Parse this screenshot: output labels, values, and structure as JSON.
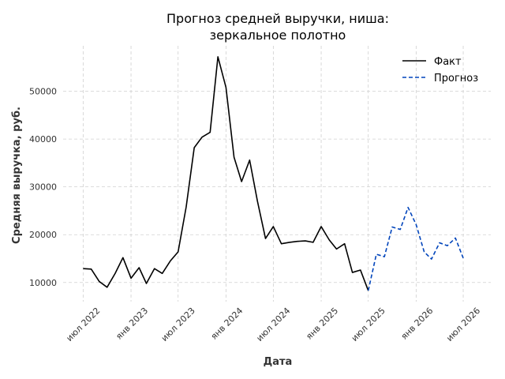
{
  "chart_data": {
    "type": "line",
    "title_lines": [
      "Прогноз средней выручки, ниша:",
      "зеркальное полотно"
    ],
    "xlabel": "Дата",
    "ylabel": "Средняя выручка, руб.",
    "x_ticks": [
      {
        "date": "2022-07-01",
        "label": "июл 2022"
      },
      {
        "date": "2023-01-01",
        "label": "янв 2023"
      },
      {
        "date": "2023-07-01",
        "label": "июл 2023"
      },
      {
        "date": "2024-01-01",
        "label": "янв 2024"
      },
      {
        "date": "2024-07-01",
        "label": "июл 2024"
      },
      {
        "date": "2025-01-01",
        "label": "янв 2025"
      },
      {
        "date": "2025-07-01",
        "label": "июл 2025"
      },
      {
        "date": "2026-01-01",
        "label": "янв 2026"
      },
      {
        "date": "2026-07-01",
        "label": "июл 2026"
      }
    ],
    "y_ticks": [
      {
        "value": 10000,
        "label": "10000"
      },
      {
        "value": 20000,
        "label": "20000"
      },
      {
        "value": 30000,
        "label": "30000"
      },
      {
        "value": 40000,
        "label": "40000"
      },
      {
        "value": 50000,
        "label": "50000"
      }
    ],
    "xlim": [
      "2022-04-15",
      "2026-10-15"
    ],
    "ylim": [
      6000,
      59500
    ],
    "grid": true,
    "legend_position": "top-right",
    "series": [
      {
        "name": "Факт",
        "color": "#000000",
        "style": "solid",
        "points": [
          [
            "2022-07-01",
            12900
          ],
          [
            "2022-08-01",
            12800
          ],
          [
            "2022-09-01",
            10200
          ],
          [
            "2022-10-01",
            9000
          ],
          [
            "2022-11-01",
            11900
          ],
          [
            "2022-12-01",
            15200
          ],
          [
            "2023-01-01",
            10900
          ],
          [
            "2023-02-01",
            13100
          ],
          [
            "2023-03-01",
            9800
          ],
          [
            "2023-04-01",
            12900
          ],
          [
            "2023-05-01",
            11900
          ],
          [
            "2023-06-01",
            14500
          ],
          [
            "2023-07-01",
            16400
          ],
          [
            "2023-08-01",
            25800
          ],
          [
            "2023-09-01",
            38200
          ],
          [
            "2023-10-01",
            40400
          ],
          [
            "2023-11-01",
            41400
          ],
          [
            "2023-12-01",
            57200
          ],
          [
            "2024-01-01",
            50800
          ],
          [
            "2024-02-01",
            36200
          ],
          [
            "2024-03-01",
            31100
          ],
          [
            "2024-04-01",
            35600
          ],
          [
            "2024-05-01",
            27000
          ],
          [
            "2024-06-01",
            19200
          ],
          [
            "2024-07-01",
            21700
          ],
          [
            "2024-08-01",
            18100
          ],
          [
            "2024-09-01",
            18400
          ],
          [
            "2024-10-01",
            18600
          ],
          [
            "2024-11-01",
            18700
          ],
          [
            "2024-12-01",
            18400
          ],
          [
            "2025-01-01",
            21700
          ],
          [
            "2025-02-01",
            18900
          ],
          [
            "2025-03-01",
            17000
          ],
          [
            "2025-04-01",
            18100
          ],
          [
            "2025-05-01",
            12100
          ],
          [
            "2025-06-01",
            12600
          ],
          [
            "2025-07-01",
            8300
          ]
        ]
      },
      {
        "name": "Прогноз",
        "color": "#0044bb",
        "style": "dashed",
        "points": [
          [
            "2025-07-01",
            8300
          ],
          [
            "2025-08-01",
            15900
          ],
          [
            "2025-09-01",
            15400
          ],
          [
            "2025-10-01",
            21600
          ],
          [
            "2025-11-01",
            21100
          ],
          [
            "2025-12-01",
            25700
          ],
          [
            "2026-01-01",
            22100
          ],
          [
            "2026-02-01",
            16400
          ],
          [
            "2026-03-01",
            14900
          ],
          [
            "2026-04-01",
            18300
          ],
          [
            "2026-05-01",
            17700
          ],
          [
            "2026-06-01",
            19300
          ],
          [
            "2026-07-01",
            15100
          ]
        ]
      }
    ]
  }
}
